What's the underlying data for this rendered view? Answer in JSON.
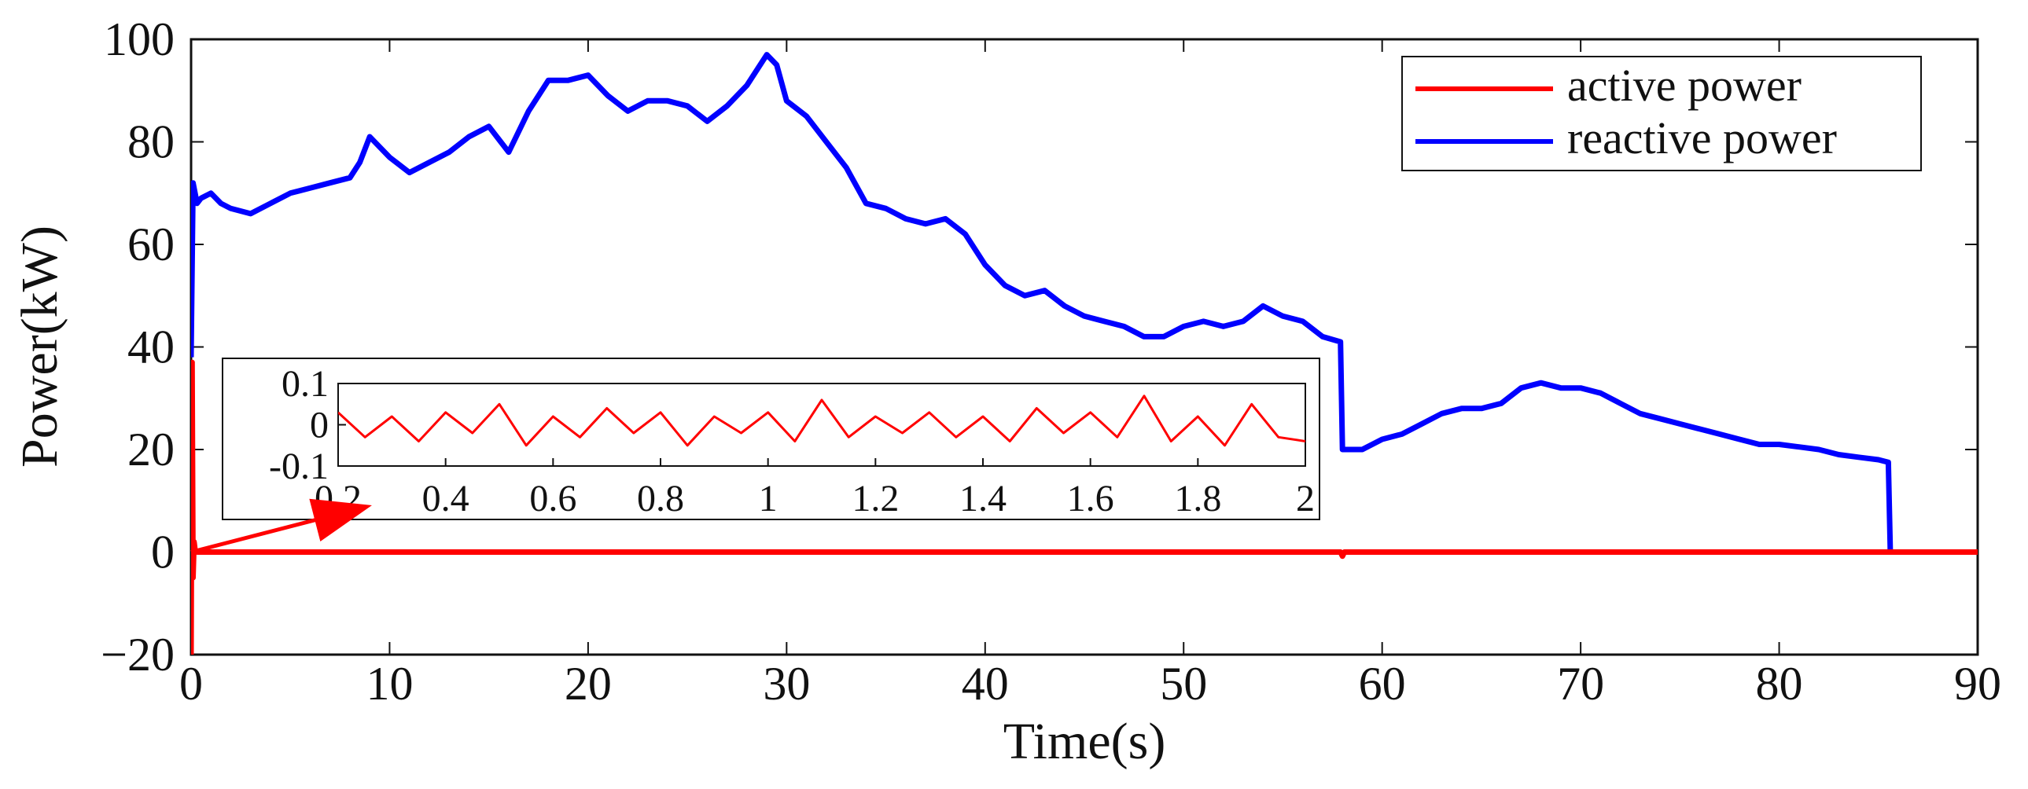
{
  "chart_data": {
    "type": "line",
    "xlabel": "Time(s)",
    "ylabel": "Power(kW)",
    "xlim": [
      0,
      90
    ],
    "ylim": [
      -20,
      100
    ],
    "xticks": [
      0,
      10,
      20,
      30,
      40,
      50,
      60,
      70,
      80,
      90
    ],
    "yticks": [
      -20,
      0,
      20,
      40,
      60,
      80,
      100
    ],
    "xtick_labels": [
      "0",
      "10",
      "20",
      "30",
      "40",
      "50",
      "60",
      "70",
      "80",
      "90"
    ],
    "ytick_labels": [
      "−20",
      "0",
      "20",
      "40",
      "60",
      "80",
      "100"
    ],
    "legend_position": "top-right",
    "series": [
      {
        "name": "active power",
        "color": "#ff0000",
        "x": [
          0,
          0.05,
          0.1,
          0.15,
          0.2,
          0.3,
          10,
          30,
          57.9,
          58,
          58.1,
          60,
          85.5,
          90
        ],
        "y": [
          -20,
          37,
          -5,
          2,
          0.5,
          0,
          0,
          0,
          0,
          -0.8,
          0,
          0,
          0,
          0
        ]
      },
      {
        "name": "reactive power",
        "color": "#0000ff",
        "x": [
          0,
          0.1,
          0.3,
          0.5,
          1,
          1.5,
          2,
          3,
          4,
          5,
          6,
          7,
          8,
          8.5,
          9,
          10,
          11,
          12,
          13,
          14,
          15,
          16,
          17,
          18,
          19,
          20,
          21,
          22,
          23,
          24,
          25,
          26,
          27,
          28,
          29,
          29.5,
          30,
          31,
          32,
          33,
          34,
          35,
          36,
          37,
          38,
          39,
          40,
          41,
          42,
          43,
          44,
          45,
          46,
          47,
          48,
          49,
          50,
          51,
          52,
          53,
          54,
          55,
          56,
          57,
          57.9,
          58,
          59,
          60,
          61,
          62,
          63,
          64,
          65,
          66,
          67,
          68,
          69,
          70,
          71,
          72,
          73,
          74,
          75,
          76,
          77,
          78,
          79,
          80,
          81,
          82,
          83,
          84,
          85,
          85.5,
          85.6,
          90
        ],
        "y": [
          38,
          72,
          68,
          69,
          70,
          68,
          67,
          66,
          68,
          70,
          71,
          72,
          73,
          76,
          81,
          77,
          74,
          76,
          78,
          81,
          83,
          78,
          86,
          92,
          92,
          93,
          89,
          86,
          88,
          88,
          87,
          84,
          87,
          91,
          97,
          95,
          88,
          85,
          80,
          75,
          68,
          67,
          65,
          64,
          65,
          62,
          56,
          52,
          50,
          51,
          48,
          46,
          45,
          44,
          42,
          42,
          44,
          45,
          44,
          45,
          48,
          46,
          45,
          42,
          41,
          20,
          20,
          22,
          23,
          25,
          27,
          28,
          28,
          29,
          32,
          33,
          32,
          32,
          31,
          29,
          27,
          26,
          25,
          24,
          23,
          22,
          21,
          21,
          20.5,
          20,
          19,
          18.5,
          18,
          17.5,
          0,
          0
        ]
      }
    ],
    "inset": {
      "xlim": [
        0.2,
        2
      ],
      "ylim": [
        -0.1,
        0.1
      ],
      "xticks": [
        0.2,
        0.4,
        0.6,
        0.8,
        1,
        1.2,
        1.4,
        1.6,
        1.8,
        2
      ],
      "yticks": [
        -0.1,
        0,
        0.1
      ],
      "xtick_labels": [
        "0.2",
        "0.4",
        "0.6",
        "0.8",
        "1",
        "1.2",
        "1.4",
        "1.6",
        "1.8",
        "2"
      ],
      "ytick_labels": [
        "-0.1",
        "0",
        "0.1"
      ],
      "series_name": "active power",
      "color": "#ff0000",
      "x": [
        0.2,
        0.25,
        0.3,
        0.35,
        0.4,
        0.45,
        0.5,
        0.55,
        0.6,
        0.65,
        0.7,
        0.75,
        0.8,
        0.85,
        0.9,
        0.95,
        1.0,
        1.05,
        1.1,
        1.15,
        1.2,
        1.25,
        1.3,
        1.35,
        1.4,
        1.45,
        1.5,
        1.55,
        1.6,
        1.65,
        1.7,
        1.75,
        1.8,
        1.85,
        1.9,
        1.95,
        2.0
      ],
      "y": [
        0.03,
        -0.03,
        0.02,
        -0.04,
        0.03,
        -0.02,
        0.05,
        -0.05,
        0.02,
        -0.03,
        0.04,
        -0.02,
        0.03,
        -0.05,
        0.02,
        -0.02,
        0.03,
        -0.04,
        0.06,
        -0.03,
        0.02,
        -0.02,
        0.03,
        -0.03,
        0.02,
        -0.04,
        0.04,
        -0.02,
        0.03,
        -0.03,
        0.07,
        -0.04,
        0.02,
        -0.05,
        0.05,
        -0.03,
        -0.04
      ]
    },
    "annotations": [
      {
        "type": "arrow",
        "from": [
          0,
          0
        ],
        "to": [
          7,
          7
        ]
      }
    ]
  }
}
